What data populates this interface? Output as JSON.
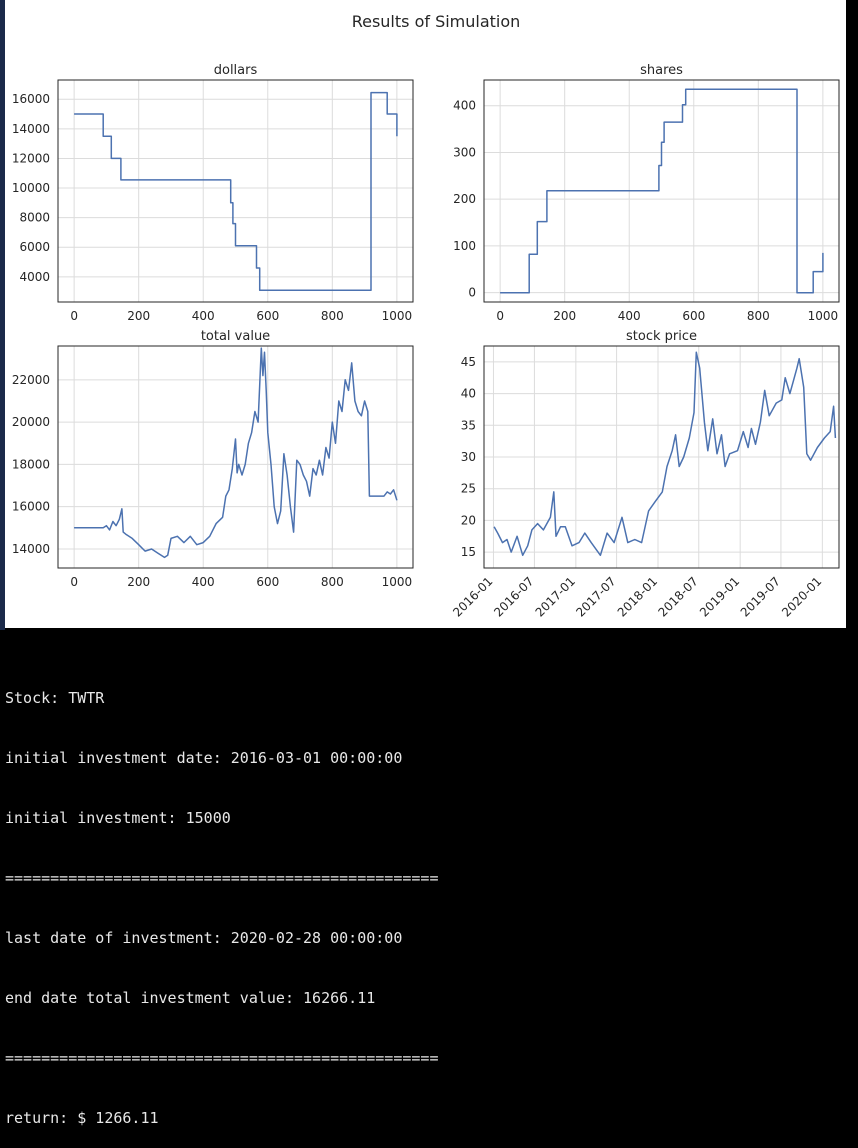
{
  "figure": {
    "suptitle": "Results of Simulation"
  },
  "chart_data": [
    {
      "type": "line",
      "title": "dollars",
      "xlabel": "",
      "ylabel": "",
      "xlim": [
        -50,
        1050
      ],
      "ylim": [
        2300,
        17300
      ],
      "xticks": [
        0,
        200,
        400,
        600,
        800,
        1000
      ],
      "yticks": [
        4000,
        6000,
        8000,
        10000,
        12000,
        14000,
        16000
      ],
      "grid": true,
      "series": [
        {
          "color": "#4c72b0",
          "step": true,
          "x": [
            0,
            90,
            115,
            145,
            485,
            492,
            500,
            508,
            565,
            575,
            920,
            970,
            1000
          ],
          "y": [
            15000,
            13500,
            12000,
            10550,
            9000,
            7600,
            6100,
            6100,
            4600,
            3100,
            16450,
            15000,
            13500
          ]
        }
      ]
    },
    {
      "type": "line",
      "title": "shares",
      "xlabel": "",
      "ylabel": "",
      "xlim": [
        -50,
        1050
      ],
      "ylim": [
        -20,
        455
      ],
      "xticks": [
        0,
        200,
        400,
        600,
        800,
        1000
      ],
      "yticks": [
        0,
        100,
        200,
        300,
        400
      ],
      "grid": true,
      "series": [
        {
          "color": "#4c72b0",
          "step": true,
          "x": [
            0,
            90,
            115,
            145,
            485,
            492,
            500,
            508,
            565,
            575,
            920,
            970,
            1000
          ],
          "y": [
            0,
            82,
            152,
            218,
            218,
            272,
            322,
            365,
            402,
            435,
            0,
            45,
            85
          ]
        }
      ]
    },
    {
      "type": "line",
      "title": "total value",
      "xlabel": "",
      "ylabel": "",
      "xlim": [
        -50,
        1050
      ],
      "ylim": [
        13100,
        23600
      ],
      "xticks": [
        0,
        200,
        400,
        600,
        800,
        1000
      ],
      "yticks": [
        14000,
        16000,
        18000,
        20000,
        22000
      ],
      "grid": true,
      "series": [
        {
          "color": "#4c72b0",
          "x": [
            0,
            90,
            100,
            110,
            120,
            130,
            140,
            148,
            152,
            160,
            180,
            200,
            220,
            240,
            260,
            280,
            290,
            300,
            320,
            340,
            360,
            380,
            400,
            420,
            440,
            460,
            470,
            480,
            490,
            500,
            505,
            510,
            520,
            530,
            540,
            550,
            560,
            570,
            580,
            585,
            590,
            595,
            600,
            610,
            615,
            620,
            630,
            640,
            650,
            660,
            670,
            680,
            690,
            700,
            710,
            720,
            730,
            740,
            750,
            760,
            770,
            780,
            790,
            800,
            810,
            820,
            830,
            840,
            850,
            860,
            870,
            880,
            890,
            900,
            910,
            915,
            920,
            940,
            960,
            970,
            980,
            990,
            1000
          ],
          "y": [
            15000,
            15000,
            15100,
            14900,
            15300,
            15100,
            15400,
            15900,
            14800,
            14700,
            14500,
            14200,
            13900,
            14000,
            13800,
            13600,
            13700,
            14500,
            14600,
            14300,
            14600,
            14200,
            14300,
            14600,
            15200,
            15500,
            16500,
            16800,
            17800,
            19200,
            17600,
            18000,
            17500,
            18000,
            19000,
            19500,
            20500,
            20000,
            23500,
            22200,
            23300,
            21500,
            19500,
            18000,
            17000,
            16000,
            15200,
            15800,
            18500,
            17500,
            16000,
            14800,
            18200,
            18000,
            17500,
            17200,
            16500,
            17800,
            17500,
            18200,
            17500,
            18800,
            18300,
            20000,
            19000,
            21000,
            20500,
            22000,
            21500,
            22800,
            21000,
            20500,
            20300,
            21000,
            20500,
            16500,
            16500,
            16500,
            16500,
            16700,
            16600,
            16800,
            16300
          ]
        }
      ]
    },
    {
      "type": "line",
      "title": "stock price",
      "xlabel": "",
      "ylabel": "",
      "xlim": [
        "2015-11-20",
        "2020-03-15"
      ],
      "ylim": [
        12.5,
        47.5
      ],
      "xticks": [
        "2016-01",
        "2016-07",
        "2017-01",
        "2017-07",
        "2018-01",
        "2018-07",
        "2019-01",
        "2019-07",
        "2020-01"
      ],
      "yticks": [
        15,
        20,
        25,
        30,
        35,
        40,
        45
      ],
      "grid": true,
      "series": [
        {
          "color": "#4c72b0",
          "x": [
            "2016-01-04",
            "2016-01-20",
            "2016-02-10",
            "2016-03-01",
            "2016-03-20",
            "2016-04-15",
            "2016-05-10",
            "2016-06-01",
            "2016-06-20",
            "2016-07-15",
            "2016-08-10",
            "2016-09-10",
            "2016-09-25",
            "2016-10-05",
            "2016-10-25",
            "2016-11-15",
            "2016-12-15",
            "2017-01-15",
            "2017-02-10",
            "2017-03-10",
            "2017-04-20",
            "2017-05-20",
            "2017-06-20",
            "2017-07-25",
            "2017-08-20",
            "2017-09-20",
            "2017-10-20",
            "2017-11-20",
            "2017-12-20",
            "2018-01-20",
            "2018-02-10",
            "2018-03-05",
            "2018-03-20",
            "2018-04-05",
            "2018-04-25",
            "2018-05-20",
            "2018-06-10",
            "2018-06-20",
            "2018-07-05",
            "2018-07-26",
            "2018-08-10",
            "2018-09-01",
            "2018-09-20",
            "2018-10-10",
            "2018-10-26",
            "2018-11-15",
            "2018-12-20",
            "2019-01-15",
            "2019-02-05",
            "2019-02-20",
            "2019-03-10",
            "2019-04-01",
            "2019-04-20",
            "2019-05-10",
            "2019-06-10",
            "2019-07-05",
            "2019-07-20",
            "2019-08-10",
            "2019-09-10",
            "2019-09-20",
            "2019-10-10",
            "2019-10-24",
            "2019-11-10",
            "2019-12-10",
            "2020-01-10",
            "2020-02-05",
            "2020-02-20",
            "2020-02-28"
          ],
          "y": [
            19,
            18,
            16.5,
            17,
            15,
            17.5,
            14.5,
            16,
            18.5,
            19.5,
            18.5,
            20.5,
            24.5,
            17.5,
            19,
            19,
            16,
            16.5,
            18,
            16.5,
            14.5,
            18,
            16.5,
            20.5,
            16.5,
            17,
            16.5,
            21.5,
            23,
            24.5,
            28.5,
            31,
            33.5,
            28.5,
            30,
            33,
            37,
            46.5,
            44,
            35.5,
            31,
            36,
            30.5,
            33.5,
            28.5,
            30.5,
            31,
            34,
            31.5,
            34.5,
            32,
            35.5,
            40.5,
            36.5,
            38.5,
            39,
            42.5,
            40,
            44,
            45.5,
            41,
            30.5,
            29.5,
            31.5,
            33,
            34,
            38,
            33
          ]
        }
      ]
    }
  ],
  "console": {
    "lines": [
      "Stock: TWTR",
      "initial investment date: 2016-03-01 00:00:00",
      "initial investment: 15000",
      "================================================",
      "last date of investment: 2020-02-28 00:00:00",
      "end date total investment value: 16266.11",
      "================================================",
      "return: $ 1266.11"
    ]
  }
}
